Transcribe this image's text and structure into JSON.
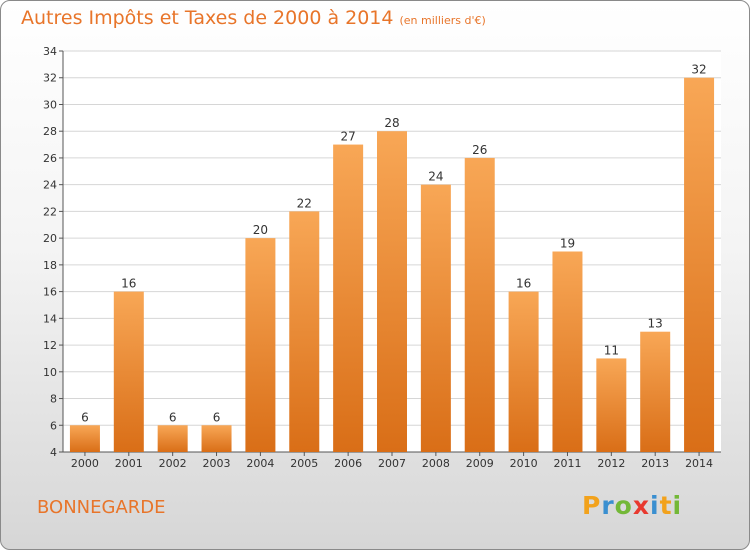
{
  "title": "Autres Impôts et Taxes de 2000 à 2014",
  "subtitle": "(en milliers d'€)",
  "commune": "BONNEGARDE",
  "brand": {
    "letters": [
      "P",
      "r",
      "o",
      "x",
      "i",
      "t",
      "i"
    ],
    "colors": [
      "#f2a21c",
      "#3a8fd0",
      "#73b837",
      "#e8392f",
      "#3a8fd0",
      "#f2a21c",
      "#73b837"
    ]
  },
  "colors": {
    "accent": "#e8752a",
    "bar_light": "#f8a756",
    "bar_dark": "#d96e17"
  },
  "chart_data": {
    "type": "bar",
    "categories": [
      "2000",
      "2001",
      "2002",
      "2003",
      "2004",
      "2005",
      "2006",
      "2007",
      "2008",
      "2009",
      "2010",
      "2011",
      "2012",
      "2013",
      "2014"
    ],
    "values": [
      6,
      16,
      6,
      6,
      20,
      22,
      27,
      28,
      24,
      26,
      16,
      19,
      11,
      13,
      32
    ],
    "ylim": [
      4,
      34
    ],
    "yticks": [
      4,
      6,
      8,
      10,
      12,
      14,
      16,
      18,
      20,
      22,
      24,
      26,
      28,
      30,
      32,
      34
    ],
    "grid": true
  }
}
